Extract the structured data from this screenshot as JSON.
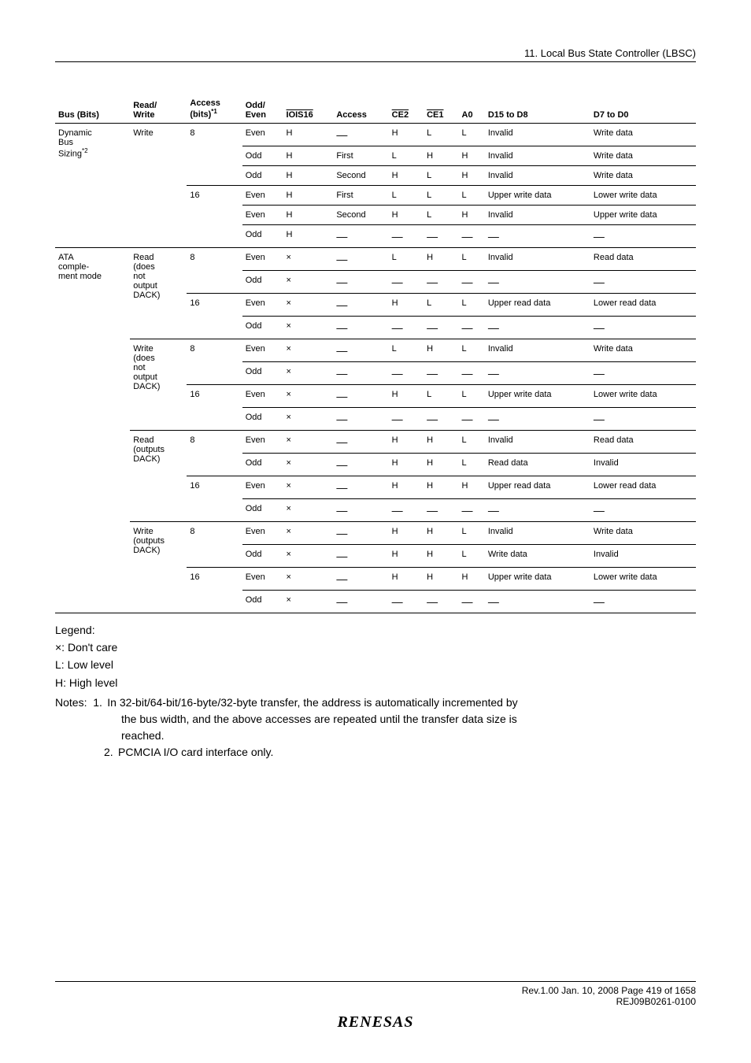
{
  "chapter_title": "11.   Local Bus State Controller (LBSC)",
  "columns": {
    "bus_bits": "Bus (Bits)",
    "read_write": "Read/\nWrite",
    "access": "Access\n(bits)",
    "access_sup": "*1",
    "odd_even": "Odd/\nEven",
    "iois16": "IOIS16",
    "access2": "Access",
    "ce2": "CE2",
    "ce1": "CE1",
    "a0": "A0",
    "d15": "D15 to D8",
    "d7": "D7 to D0"
  },
  "group1": {
    "bus_bits_1": "Dynamic",
    "bus_bits_2": "Bus",
    "bus_bits_3": "Sizing",
    "bus_bits_sup": "*2",
    "rw": "Write",
    "rows": [
      {
        "acc": "8",
        "oe": "Even",
        "io": "H",
        "ac2": "—",
        "ce2": "H",
        "ce1": "L",
        "a0": "L",
        "d15": "Invalid",
        "d7": "Write data"
      },
      {
        "acc": "",
        "oe": "Odd",
        "io": "H",
        "ac2": "First",
        "ce2": "L",
        "ce1": "H",
        "a0": "H",
        "d15": "Invalid",
        "d7": "Write data"
      },
      {
        "acc": "",
        "oe": "Odd",
        "io": "H",
        "ac2": "Second",
        "ce2": "H",
        "ce1": "L",
        "a0": "H",
        "d15": "Invalid",
        "d7": "Write data"
      },
      {
        "acc": "16",
        "oe": "Even",
        "io": "H",
        "ac2": "First",
        "ce2": "L",
        "ce1": "L",
        "a0": "L",
        "d15": "Upper write data",
        "d7": "Lower write data"
      },
      {
        "acc": "",
        "oe": "Even",
        "io": "H",
        "ac2": "Second",
        "ce2": "H",
        "ce1": "L",
        "a0": "H",
        "d15": "Invalid",
        "d7": "Upper write data"
      },
      {
        "acc": "",
        "oe": "Odd",
        "io": "H",
        "ac2": "—",
        "ce2": "—",
        "ce1": "—",
        "a0": "—",
        "d15": "—",
        "d7": "—"
      }
    ]
  },
  "group2": {
    "bus_bits_1": "ATA",
    "bus_bits_2": "comple-",
    "bus_bits_3": "ment mode",
    "blocks": [
      {
        "rw_lines": [
          "Read",
          "(does",
          "not",
          "output",
          "DACK)"
        ],
        "rows": [
          {
            "acc": "8",
            "oe": "Even",
            "io": "×",
            "ac2": "—",
            "ce2": "L",
            "ce1": "H",
            "a0": "L",
            "d15": "Invalid",
            "d7": "Read data"
          },
          {
            "acc": "",
            "oe": "Odd",
            "io": "×",
            "ac2": "—",
            "ce2": "—",
            "ce1": "—",
            "a0": "—",
            "d15": "—",
            "d7": "—"
          },
          {
            "acc": "16",
            "oe": "Even",
            "io": "×",
            "ac2": "—",
            "ce2": "H",
            "ce1": "L",
            "a0": "L",
            "d15": "Upper read data",
            "d7": "Lower read data"
          },
          {
            "acc": "",
            "oe": "Odd",
            "io": "×",
            "ac2": "—",
            "ce2": "—",
            "ce1": "—",
            "a0": "—",
            "d15": "—",
            "d7": "—"
          }
        ]
      },
      {
        "rw_lines": [
          "Write",
          "(does",
          "not",
          "output",
          "DACK)"
        ],
        "rows": [
          {
            "acc": "8",
            "oe": "Even",
            "io": "×",
            "ac2": "—",
            "ce2": "L",
            "ce1": "H",
            "a0": "L",
            "d15": "Invalid",
            "d7": "Write data"
          },
          {
            "acc": "",
            "oe": "Odd",
            "io": "×",
            "ac2": "—",
            "ce2": "—",
            "ce1": "—",
            "a0": "—",
            "d15": "—",
            "d7": "—"
          },
          {
            "acc": "16",
            "oe": "Even",
            "io": "×",
            "ac2": "—",
            "ce2": "H",
            "ce1": "L",
            "a0": "L",
            "d15": "Upper write data",
            "d7": "Lower write data"
          },
          {
            "acc": "",
            "oe": "Odd",
            "io": "×",
            "ac2": "—",
            "ce2": "—",
            "ce1": "—",
            "a0": "—",
            "d15": "—",
            "d7": "—"
          }
        ]
      },
      {
        "rw_lines": [
          "Read",
          "(outputs",
          "DACK)"
        ],
        "rows": [
          {
            "acc": "8",
            "oe": "Even",
            "io": "×",
            "ac2": "—",
            "ce2": "H",
            "ce1": "H",
            "a0": "L",
            "d15": "Invalid",
            "d7": "Read data"
          },
          {
            "acc": "",
            "oe": "Odd",
            "io": "×",
            "ac2": "—",
            "ce2": "H",
            "ce1": "H",
            "a0": "L",
            "d15": "Read data",
            "d7": "Invalid"
          },
          {
            "acc": "16",
            "oe": "Even",
            "io": "×",
            "ac2": "—",
            "ce2": "H",
            "ce1": "H",
            "a0": "H",
            "d15": "Upper read data",
            "d7": "Lower read data"
          },
          {
            "acc": "",
            "oe": "Odd",
            "io": "×",
            "ac2": "—",
            "ce2": "—",
            "ce1": "—",
            "a0": "—",
            "d15": "—",
            "d7": "—"
          }
        ]
      },
      {
        "rw_lines": [
          "Write",
          "(outputs",
          "DACK)"
        ],
        "rows": [
          {
            "acc": "8",
            "oe": "Even",
            "io": "×",
            "ac2": "—",
            "ce2": "H",
            "ce1": "H",
            "a0": "L",
            "d15": "Invalid",
            "d7": "Write data"
          },
          {
            "acc": "",
            "oe": "Odd",
            "io": "×",
            "ac2": "—",
            "ce2": "H",
            "ce1": "H",
            "a0": "L",
            "d15": "Write data",
            "d7": "Invalid"
          },
          {
            "acc": "16",
            "oe": "Even",
            "io": "×",
            "ac2": "—",
            "ce2": "H",
            "ce1": "H",
            "a0": "H",
            "d15": "Upper write data",
            "d7": "Lower write data"
          },
          {
            "acc": "",
            "oe": "Odd",
            "io": "×",
            "ac2": "—",
            "ce2": "—",
            "ce1": "—",
            "a0": "—",
            "d15": "—",
            "d7": "—"
          }
        ]
      }
    ]
  },
  "legend": {
    "title": "Legend:",
    "l1": "×: Don't care",
    "l2": "L: Low level",
    "l3": "H: High level"
  },
  "notes": {
    "prefix": "Notes:",
    "n1_num": "1.",
    "n1_a": "In 32-bit/64-bit/16-byte/32-byte transfer, the address is automatically incremented by",
    "n1_b": "the bus width, and the above accesses are repeated until the transfer data size is",
    "n1_c": "reached.",
    "n2_num": "2.",
    "n2": "PCMCIA I/O card interface only."
  },
  "footer": {
    "line1": "Rev.1.00  Jan. 10, 2008  Page 419 of 1658",
    "line2": "REJ09B0261-0100",
    "brand": "RENESAS"
  },
  "style": {
    "page_bg": "#ffffff",
    "text_color": "#000000",
    "border_color": "#000000",
    "body_font_size": 14,
    "table_font_size": 11,
    "header_font_size": 13
  }
}
